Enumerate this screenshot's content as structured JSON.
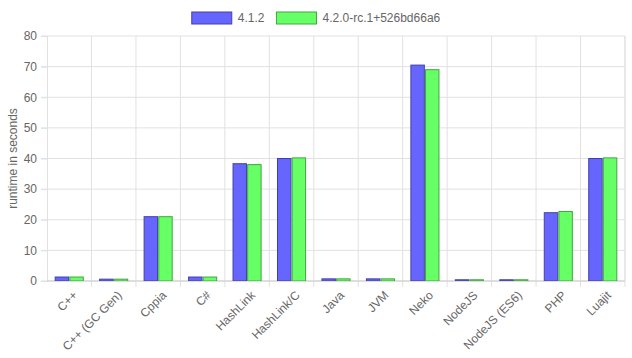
{
  "chart_data": {
    "type": "bar",
    "y_label": "runtime in seconds",
    "categories": [
      "C++",
      "C++ (GC Gen)",
      "Cppia",
      "C#",
      "HashLink",
      "HashLink/C",
      "Java",
      "JVM",
      "Neko",
      "NodeJS",
      "NodeJS (ES6)",
      "PHP",
      "Luajit"
    ],
    "series": [
      {
        "name": "4.1.2",
        "color": "#6666ff",
        "values": [
          1.3,
          0.6,
          21,
          1.3,
          38.3,
          40,
          0.7,
          0.7,
          70.5,
          0.4,
          0.4,
          22.3,
          40
        ]
      },
      {
        "name": "4.2.0-rc.1+526bd66a6",
        "color": "#66ff66",
        "values": [
          1.3,
          0.6,
          21,
          1.3,
          38,
          40.2,
          0.7,
          0.7,
          69,
          0.4,
          0.4,
          22.7,
          40.2
        ]
      }
    ],
    "ylim": [
      0,
      80
    ],
    "yticks": [
      0,
      10,
      20,
      30,
      40,
      50,
      60,
      70,
      80
    ],
    "grid": true,
    "legend": "top"
  }
}
